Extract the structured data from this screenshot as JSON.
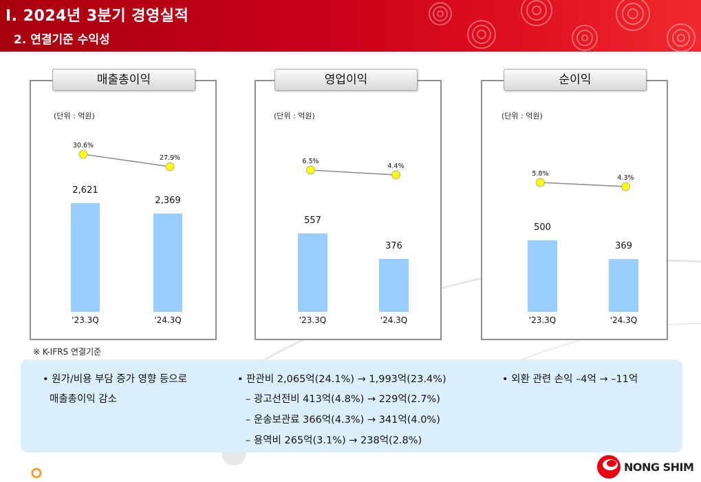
{
  "header": {
    "title": "Ⅰ. 2024년 3분기 경영실적",
    "subtitle": "2. 연결기준 수익성"
  },
  "panels": [
    {
      "title": "매출총이익",
      "unit": "(단위 : 억원)"
    },
    {
      "title": "영업이익",
      "unit": "(단위 : 억원)"
    },
    {
      "title": "순이익",
      "unit": "(단위 : 억원)"
    }
  ],
  "chart_data": [
    {
      "type": "bar",
      "title": "매출총이익",
      "categories": [
        "'23.3Q",
        "'24.3Q"
      ],
      "values": [
        2621,
        2369
      ],
      "value_labels": [
        "2,621",
        "2,369"
      ],
      "line_series": {
        "values": [
          30.6,
          27.9
        ],
        "labels": [
          "30.6%",
          "27.9%"
        ]
      },
      "bar_color": "#99ccff",
      "line_marker_color": "#ffff00"
    },
    {
      "type": "bar",
      "title": "영업이익",
      "categories": [
        "'23.3Q",
        "'24.3Q"
      ],
      "values": [
        557,
        376
      ],
      "value_labels": [
        "557",
        "376"
      ],
      "line_series": {
        "values": [
          6.5,
          4.4
        ],
        "labels": [
          "6.5%",
          "4.4%"
        ]
      },
      "bar_color": "#99ccff",
      "line_marker_color": "#ffff00"
    },
    {
      "type": "bar",
      "title": "순이익",
      "categories": [
        "'23.3Q",
        "'24.3Q"
      ],
      "values": [
        500,
        369
      ],
      "value_labels": [
        "500",
        "369"
      ],
      "line_series": {
        "values": [
          5.8,
          4.3
        ],
        "labels": [
          "5.8%",
          "4.3%"
        ]
      },
      "bar_color": "#99ccff",
      "line_marker_color": "#ffff00"
    }
  ],
  "note": "※ K-IFRS 연결기준",
  "info": {
    "col1_line1": "• 원가/비용 부담 증가 영향 등으로",
    "col1_line2": "매출총이익 감소",
    "col2_line1": "• 판관비 2,065억(24.1%) → 1,993억(23.4%)",
    "col2_line2": "– 광고선전비 413억(4.8%) → 229억(2.7%)",
    "col2_line3": "– 운송보관료 366억(4.3%) → 341억(4.0%)",
    "col2_line4": "– 용역비 265억(3.1%) → 238억(2.8%)",
    "col3_line1": "• 외환 관련 손익 –4억 → –11억"
  },
  "logo": {
    "text": "NONG SHIM",
    "icon": "nongshim-logo-icon",
    "color": "#e60012"
  }
}
